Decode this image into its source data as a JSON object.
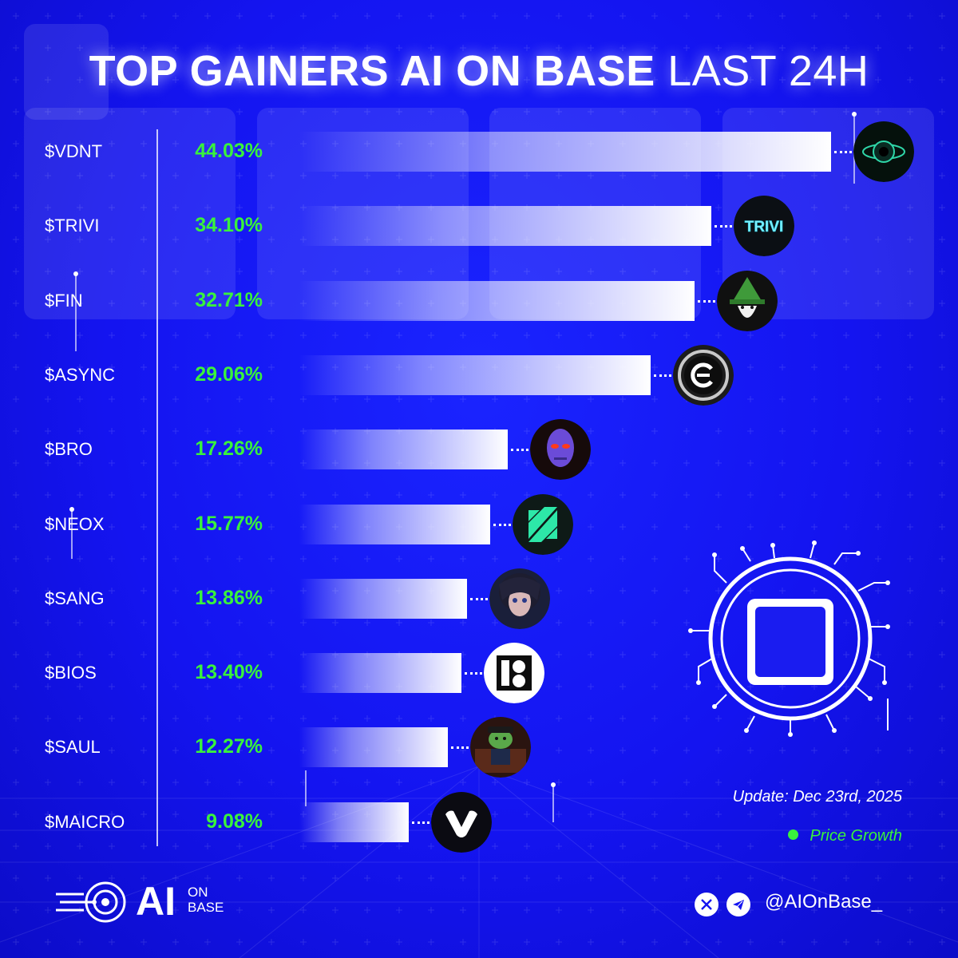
{
  "header": {
    "title_bold": "TOP GAINERS AI ON BASE",
    "title_light": "LAST 24H"
  },
  "colors": {
    "background": "#1414f0",
    "accent_green": "#39f23c",
    "bar": "#ffffff"
  },
  "chart_data": {
    "type": "bar",
    "orientation": "horizontal",
    "title": "TOP GAINERS AI ON BASE LAST 24H",
    "xlabel": "",
    "ylabel": "",
    "legend": [
      {
        "label": "Price Growth",
        "color": "#39f23c",
        "placement": "bottom-right"
      }
    ],
    "xlim": [
      0,
      46
    ],
    "categories": [
      "$VDNT",
      "$TRIVI",
      "$FIN",
      "$ASYNC",
      "$BRO",
      "$NEOX",
      "$SANG",
      "$BIOS",
      "$SAUL",
      "$MAICRO"
    ],
    "values": [
      44.03,
      34.1,
      32.71,
      29.06,
      17.26,
      15.77,
      13.86,
      13.4,
      12.27,
      9.08
    ],
    "value_labels": [
      "44.03%",
      "34.10%",
      "32.71%",
      "29.06%",
      "17.26%",
      "15.77%",
      "13.86%",
      "13.40%",
      "12.27%",
      "9.08%"
    ],
    "logo_icons": [
      "vdnt-icon",
      "trivi-icon",
      "fin-wizard-icon",
      "async-icon",
      "bro-icon",
      "neox-icon",
      "sang-icon",
      "bios-icon",
      "saul-icon",
      "maicro-icon"
    ],
    "trivi_logo_text": "TRIVI"
  },
  "footer": {
    "update": "Update: Dec 23rd, 2025",
    "legend_label": "Price Growth",
    "brand_ai": "AI",
    "brand_on": "ON",
    "brand_base": "BASE",
    "handle": "@AIOnBase_",
    "social_icons": [
      "x-icon",
      "telegram-icon"
    ]
  }
}
